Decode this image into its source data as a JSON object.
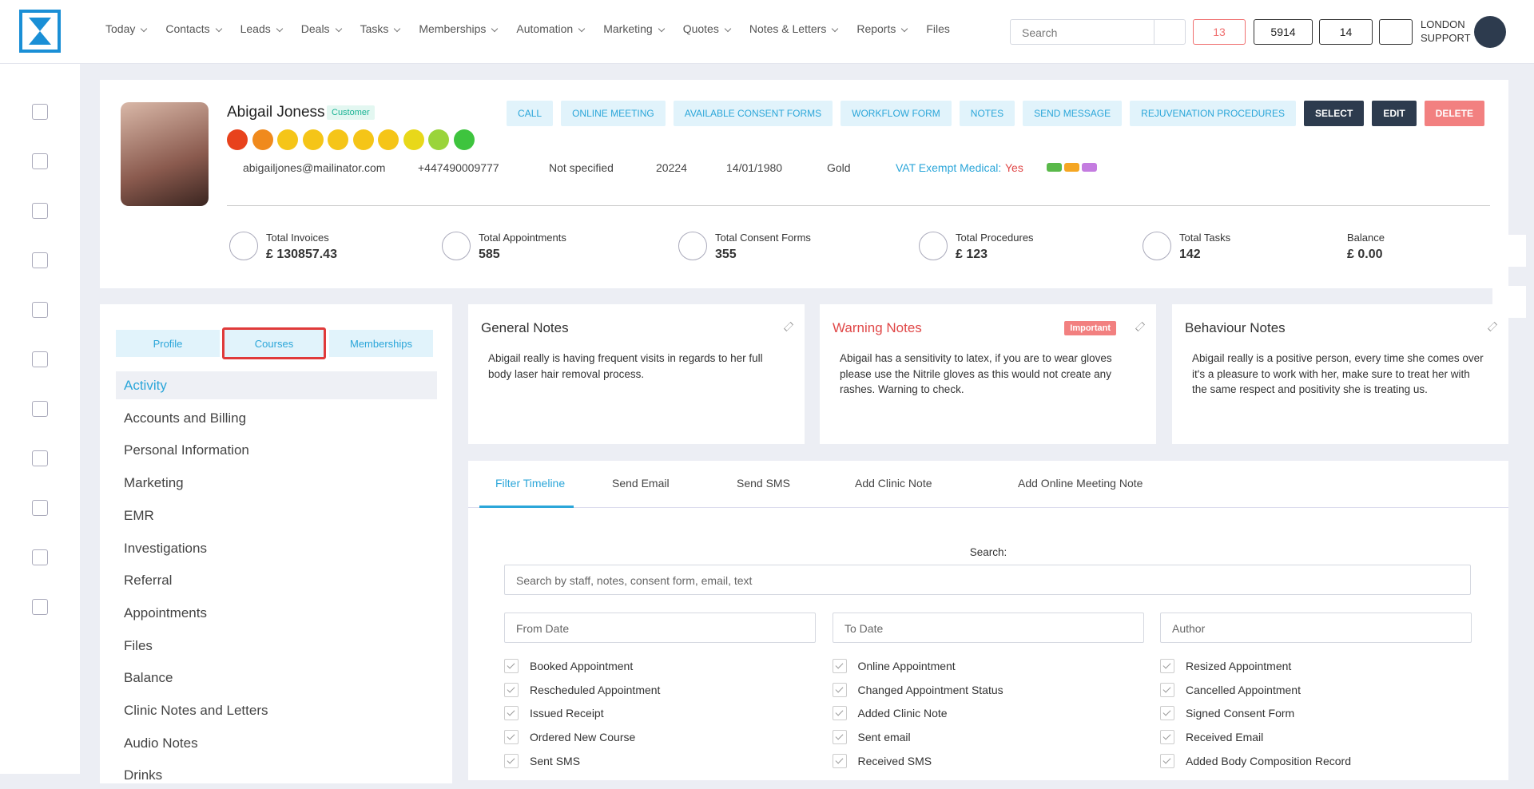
{
  "nav": {
    "items": [
      "Today",
      "Contacts",
      "Leads",
      "Deals",
      "Tasks",
      "Memberships",
      "Automation",
      "Marketing",
      "Quotes",
      "Notes & Letters",
      "Reports",
      "Files"
    ]
  },
  "header": {
    "search": "Search",
    "mail_count": "13",
    "phone_count": "5914",
    "task_count": "14",
    "user": [
      "LONDON",
      "SUPPORT"
    ]
  },
  "profile": {
    "name": "Abigail Joness",
    "badge": "Customer",
    "email": "abigailjones@mailinator.com",
    "phone": "+447490009777",
    "gender": "Not specified",
    "id": "20224",
    "dob": "14/01/1980",
    "tier": "Gold",
    "vat_label": "VAT Exempt Medical:",
    "vat_value": "Yes",
    "actions": [
      "CALL",
      "ONLINE MEETING",
      "AVAILABLE CONSENT FORMS",
      "WORKFLOW FORM",
      "NOTES",
      "SEND MESSAGE",
      "REJUVENATION PROCEDURES",
      "SELECT",
      "EDIT",
      "DELETE"
    ],
    "stats": [
      {
        "label": "Total Invoices",
        "value": "£ 130857.43"
      },
      {
        "label": "Total Appointments",
        "value": "585"
      },
      {
        "label": "Total Consent Forms",
        "value": "355"
      },
      {
        "label": "Total Procedures",
        "value": "£ 123"
      },
      {
        "label": "Total Tasks",
        "value": "142"
      },
      {
        "label": "Balance",
        "value": "£ 0.00"
      }
    ]
  },
  "tabs": [
    "Profile",
    "Courses",
    "Memberships"
  ],
  "menu": [
    "Activity",
    "Accounts and Billing",
    "Personal Information",
    "Marketing",
    "EMR",
    "Investigations",
    "Referral",
    "Appointments",
    "Files",
    "Balance",
    "Clinic Notes and Letters",
    "Audio Notes",
    "Drinks"
  ],
  "notes": [
    {
      "title": "General Notes",
      "text": "Abigail really is having frequent visits in regards to her full body laser hair removal process."
    },
    {
      "title": "Warning Notes",
      "badge": "Important",
      "text": "Abigail has a sensitivity to latex, if you are to wear gloves please use the Nitrile gloves as this would not create any rashes. Warning to check."
    },
    {
      "title": "Behaviour Notes",
      "text": "Abigail really is a positive person, every time she comes over it's a pleasure to work with her, make sure to treat her with the same respect and positivity she is treating us."
    }
  ],
  "timeline": {
    "tabs": [
      "Filter Timeline",
      "Send Email",
      "Send SMS",
      "Add Clinic Note",
      "Add Online Meeting Note"
    ],
    "search_label": "Search:",
    "search_placeholder": "Search by staff, notes, consent form, email, text",
    "from": "From Date",
    "to": "To Date",
    "author": "Author",
    "filters": [
      "Booked Appointment",
      "Online Appointment",
      "Resized Appointment",
      "Rescheduled Appointment",
      "Changed Appointment Status",
      "Cancelled Appointment",
      "Issued Receipt",
      "Added Clinic Note",
      "Signed Consent Form",
      "Ordered New Course",
      "Sent email",
      "Received Email",
      "Sent SMS",
      "Received SMS",
      "Added Body Composition Record"
    ]
  }
}
